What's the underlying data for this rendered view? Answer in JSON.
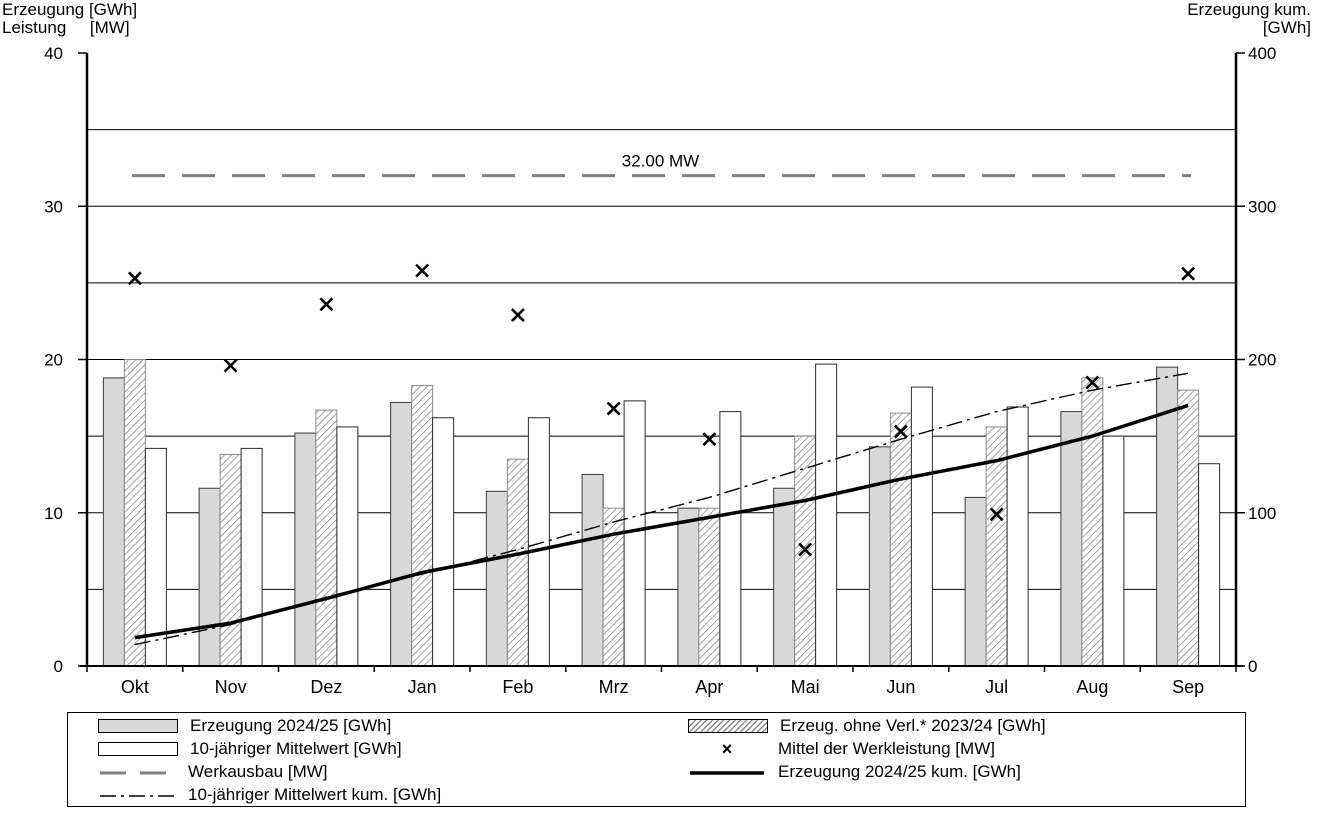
{
  "chart_data": {
    "type": "bar",
    "axis_titles": {
      "left_line1": "Erzeugung [GWh]",
      "left_line2": "Leistung     [MW]",
      "right_line1": "Erzeugung kum.",
      "right_line2": "[GWh]"
    },
    "categories": [
      "Okt",
      "Nov",
      "Dez",
      "Jan",
      "Feb",
      "Mrz",
      "Apr",
      "Mai",
      "Jun",
      "Jul",
      "Aug",
      "Sep"
    ],
    "ylim_left": [
      0,
      40
    ],
    "ylim_right": [
      0,
      400
    ],
    "yticks_left": [
      0,
      10,
      20,
      30,
      40
    ],
    "yticks_right": [
      0,
      100,
      200,
      300,
      400
    ],
    "gridlines_left": [
      5,
      10,
      15,
      20,
      25,
      30,
      35
    ],
    "series": [
      {
        "name": "Erzeugung 2024/25 [GWh]",
        "kind": "bar",
        "axis": "left",
        "values": [
          18.8,
          11.6,
          15.2,
          17.2,
          11.4,
          12.5,
          10.3,
          11.6,
          14.3,
          11.0,
          16.6,
          19.5
        ]
      },
      {
        "name": "Erzeug. ohne Verl.* 2023/24 [GWh]",
        "kind": "bar-hatched",
        "axis": "left",
        "values": [
          20.0,
          13.8,
          16.7,
          18.3,
          13.5,
          10.3,
          10.3,
          15.0,
          16.5,
          15.6,
          18.8,
          18.0
        ]
      },
      {
        "name": "10-jähriger Mittelwert [GWh]",
        "kind": "bar-white",
        "axis": "left",
        "values": [
          14.2,
          14.2,
          15.6,
          16.2,
          16.2,
          17.3,
          16.6,
          19.7,
          18.2,
          16.9,
          15.0,
          13.2
        ]
      },
      {
        "name": "Mittel der Werkleistung [MW]",
        "kind": "marker-x",
        "axis": "left",
        "values": [
          25.3,
          19.6,
          23.6,
          25.8,
          22.9,
          16.8,
          14.8,
          7.6,
          15.3,
          9.9,
          18.5,
          25.6
        ]
      },
      {
        "name": "Werkausbau [MW]",
        "kind": "dashed-line",
        "axis": "left",
        "value": 32.0,
        "label": "32.00 MW"
      },
      {
        "name": "Erzeugung 2024/25 kum. [GWh]",
        "kind": "line",
        "axis": "right",
        "values": [
          18.5,
          28,
          44,
          61,
          73,
          86,
          97,
          108,
          122,
          134,
          150,
          170
        ]
      },
      {
        "name": "10-jähriger Mittelwert kum. [GWh]",
        "kind": "dashdot-line",
        "axis": "right",
        "values": [
          14,
          27,
          45,
          60,
          76,
          94,
          110,
          129,
          148,
          166,
          180,
          191
        ]
      }
    ],
    "colors": {
      "erzeugung": "#d9d9d9",
      "werkausbau": "#808080",
      "grid": "#000000"
    },
    "legend": {
      "placement": "bottom",
      "items": [
        "Erzeugung 2024/25 [GWh]",
        "Erzeug. ohne Verl.* 2023/24 [GWh]",
        "10-jähriger Mittelwert [GWh]",
        "Mittel der Werkleistung [MW]",
        "Werkausbau [MW]",
        "Erzeugung 2024/25 kum. [GWh]",
        "10-jähriger Mittelwert kum. [GWh]"
      ]
    }
  }
}
